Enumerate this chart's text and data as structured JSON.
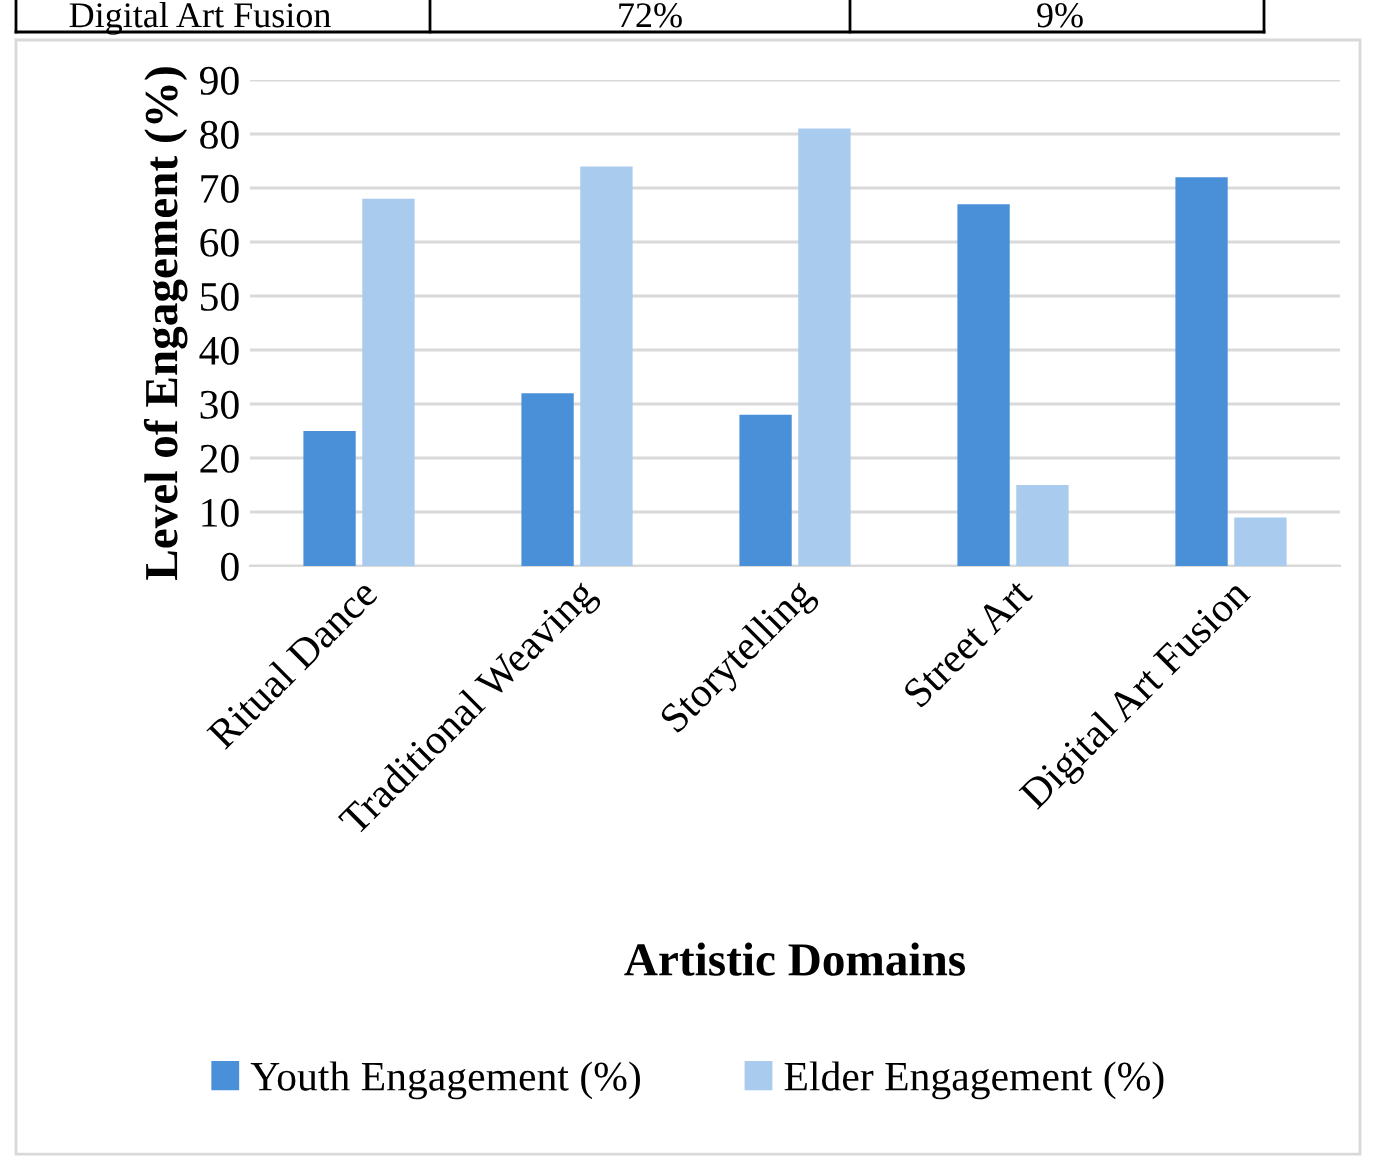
{
  "chart_data": {
    "type": "bar",
    "xlabel": "Artistic Domains",
    "ylabel": "Level of Engagement (%)",
    "categories": [
      "Ritual Dance",
      "Traditional Weaving",
      "Storytelling",
      "Street Art",
      "Digital Art Fusion"
    ],
    "series": [
      {
        "name": "Youth Engagement (%)",
        "color": "#4a90d9",
        "values": [
          25,
          32,
          28,
          67,
          72
        ]
      },
      {
        "name": "Elder Engagement (%)",
        "color": "#a9cbee",
        "values": [
          68,
          74,
          81,
          15,
          9
        ]
      }
    ],
    "ylim": [
      0,
      90
    ],
    "yticks": [
      0,
      10,
      20,
      30,
      40,
      50,
      60,
      70,
      80,
      90
    ],
    "grid": "y",
    "legend": "bottom",
    "annotations": [
      "Digital Art Fusion",
      "72%",
      "9%"
    ]
  }
}
